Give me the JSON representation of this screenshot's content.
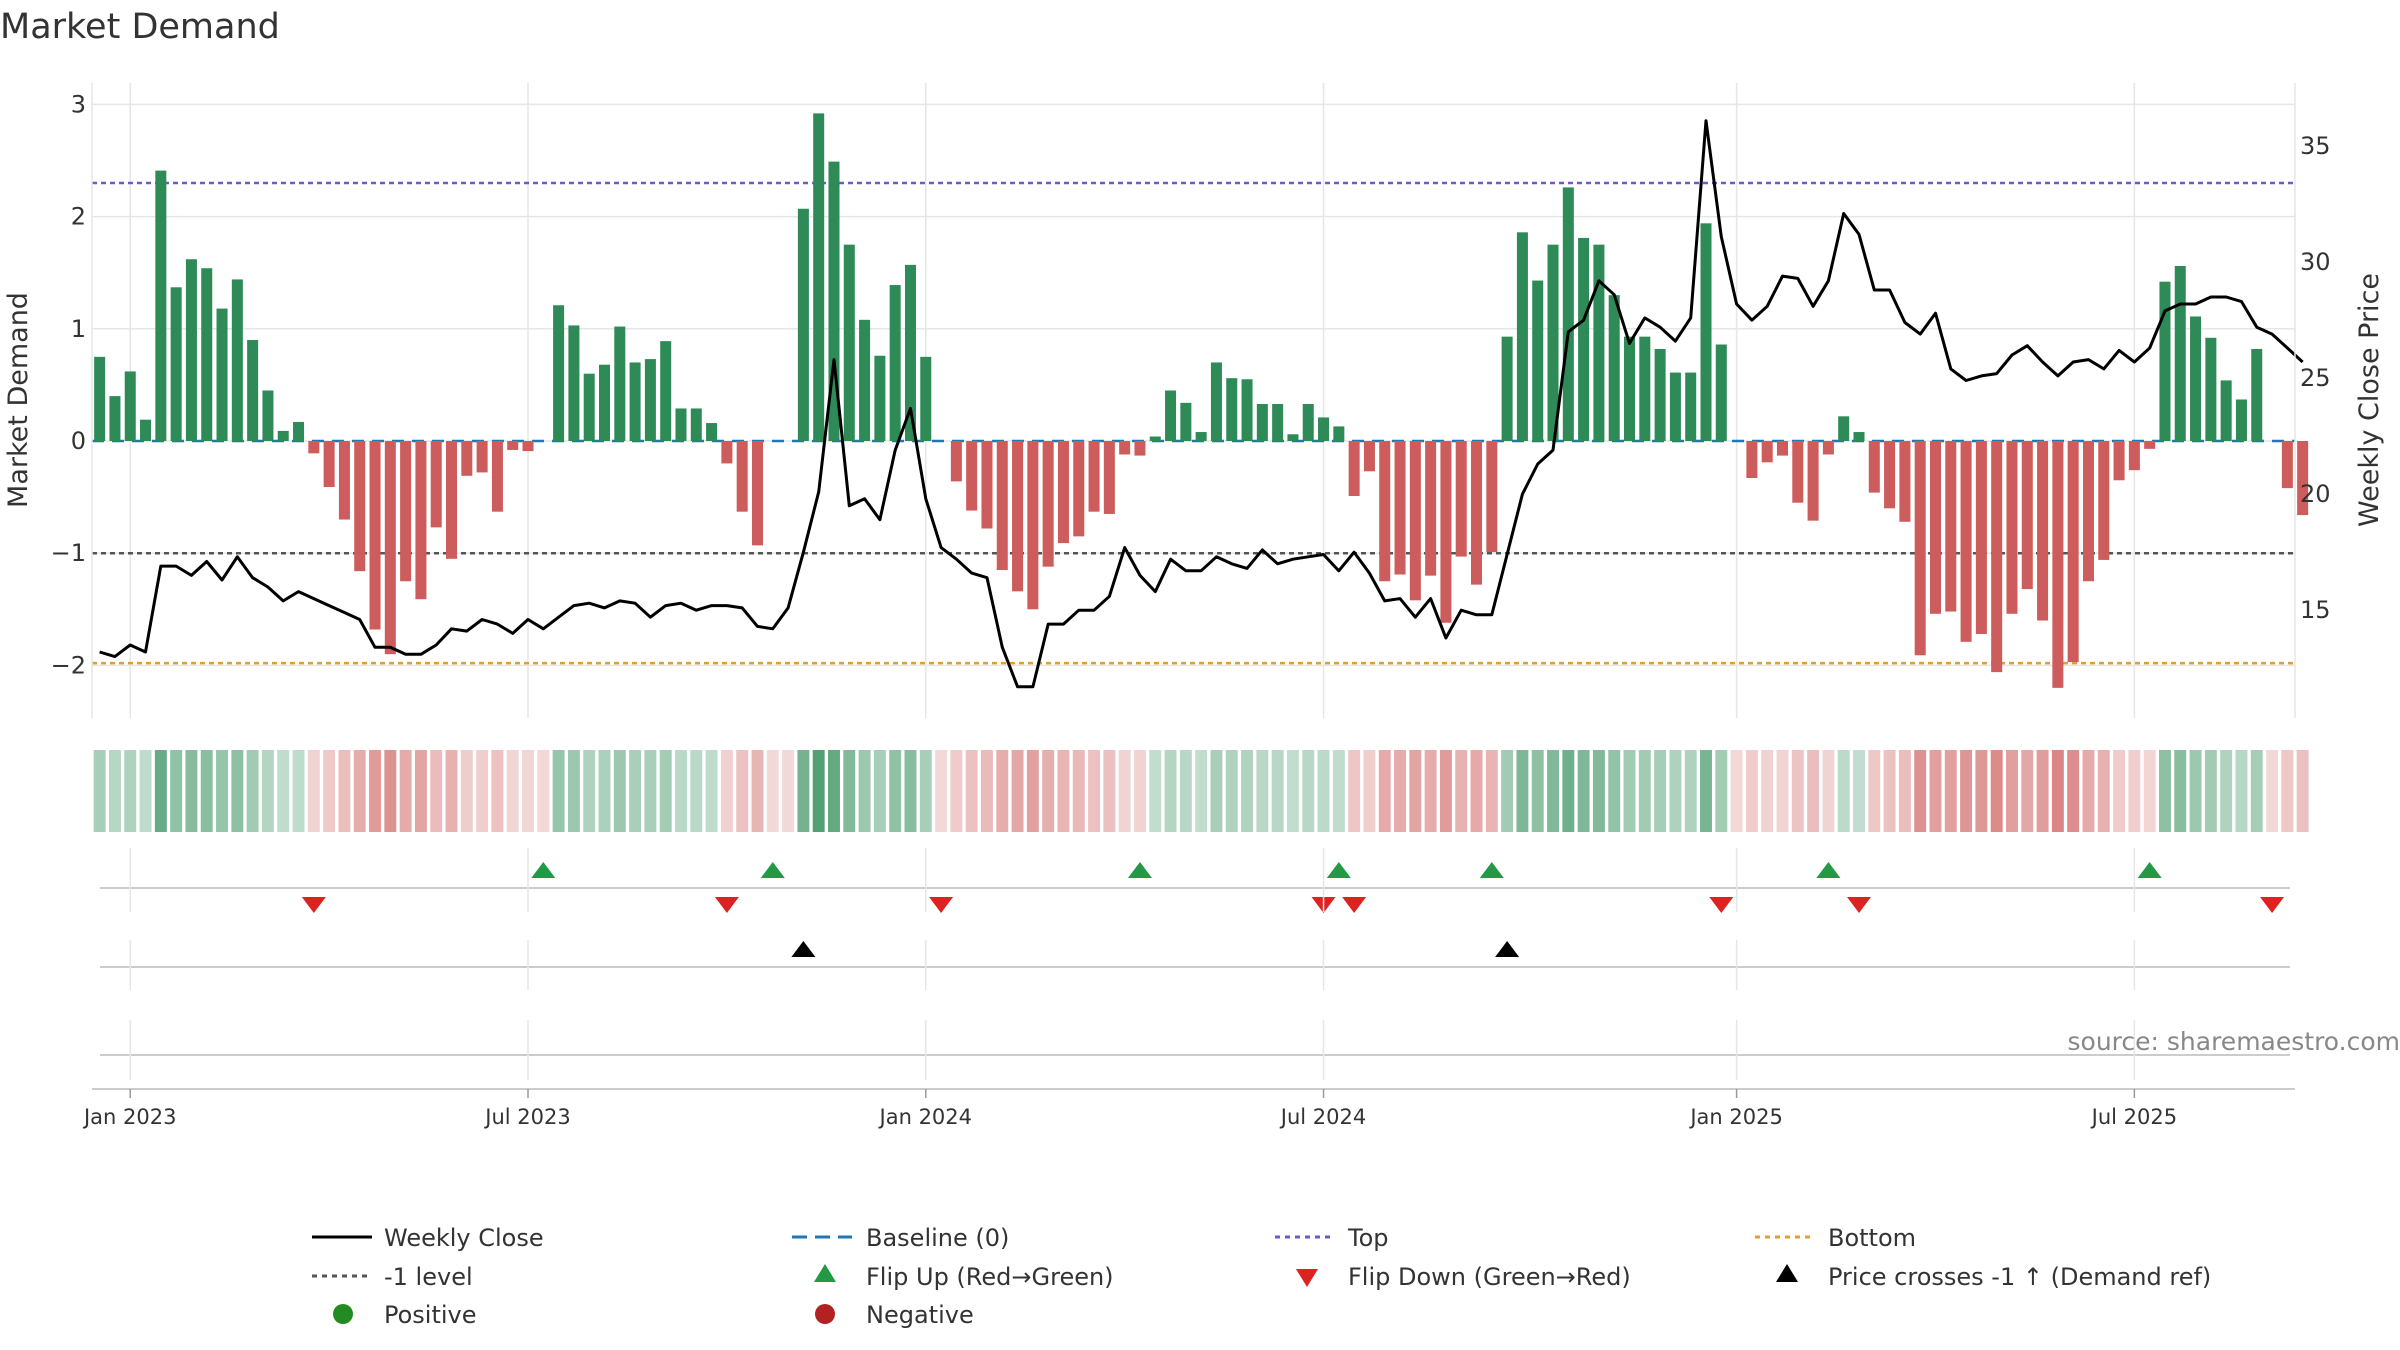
{
  "chart_data": {
    "type": "bar",
    "title": "Market Demand",
    "source": "source: sharemaestro.com",
    "ylabel": "Market Demand",
    "y2label": "Weekly Close Price",
    "ylim": [
      -2.5,
      3.2
    ],
    "y2lim": [
      10.0,
      37.0
    ],
    "yticks": [
      {
        "v": 3,
        "label": "3"
      },
      {
        "v": 2,
        "label": "2"
      },
      {
        "v": 1,
        "label": "1"
      },
      {
        "v": 0,
        "label": "0"
      },
      {
        "v": -1,
        "label": "−1"
      },
      {
        "v": -2,
        "label": "−2"
      }
    ],
    "y2ticks": [
      {
        "v": 35,
        "label": "35"
      },
      {
        "v": 30,
        "label": "30"
      },
      {
        "v": 25,
        "label": "25"
      },
      {
        "v": 20,
        "label": "20"
      },
      {
        "v": 15,
        "label": "15"
      }
    ],
    "xticks": [
      {
        "week": 2,
        "label": "Jan 2023"
      },
      {
        "week": 28,
        "label": "Jul 2023"
      },
      {
        "week": 54,
        "label": "Jan 2024"
      },
      {
        "week": 80,
        "label": "Jul 2024"
      },
      {
        "week": 107,
        "label": "Jan 2025"
      },
      {
        "week": 133,
        "label": "Jul 2025"
      }
    ],
    "week_count": 144,
    "levels": {
      "top": 2.3,
      "bottom": -1.98,
      "minus_one": -1.0,
      "baseline": 0
    },
    "demand": [
      0.75,
      0.4,
      0.62,
      0.19,
      2.41,
      1.37,
      1.62,
      1.54,
      1.18,
      1.44,
      0.9,
      0.45,
      0.09,
      0.17,
      -0.11,
      -0.41,
      -0.7,
      -1.16,
      -1.68,
      -1.9,
      -1.25,
      -1.41,
      -0.77,
      -1.05,
      -0.31,
      -0.28,
      -0.63,
      -0.08,
      -0.09,
      0.0,
      1.21,
      1.03,
      0.6,
      0.68,
      1.02,
      0.7,
      0.73,
      0.89,
      0.29,
      0.29,
      0.16,
      -0.2,
      -0.63,
      -0.93,
      0.0,
      0.0,
      2.07,
      2.92,
      2.49,
      1.75,
      1.08,
      0.76,
      1.39,
      1.57,
      0.75,
      0.0,
      -0.36,
      -0.62,
      -0.78,
      -1.15,
      -1.34,
      -1.5,
      -1.12,
      -0.91,
      -0.85,
      -0.63,
      -0.65,
      -0.12,
      -0.13,
      0.04,
      0.45,
      0.34,
      0.08,
      0.7,
      0.56,
      0.55,
      0.33,
      0.33,
      0.06,
      0.33,
      0.21,
      0.13,
      -0.49,
      -0.27,
      -1.25,
      -1.19,
      -1.42,
      -1.2,
      -1.62,
      -1.03,
      -1.28,
      -0.99,
      0.93,
      1.86,
      1.43,
      1.75,
      2.26,
      1.81,
      1.75,
      1.3,
      0.93,
      0.93,
      0.82,
      0.61,
      0.61,
      1.94,
      0.86,
      0.0,
      -0.33,
      -0.19,
      -0.13,
      -0.55,
      -0.71,
      -0.12,
      0.22,
      0.08,
      -0.46,
      -0.6,
      -0.72,
      -1.91,
      -1.54,
      -1.52,
      -1.79,
      -1.72,
      -2.06,
      -1.54,
      -1.32,
      -1.6,
      -2.2,
      -1.97,
      -1.25,
      -1.06,
      -0.35,
      -0.26,
      -0.07,
      1.42,
      1.56,
      1.11,
      0.92,
      0.54,
      0.37,
      0.82,
      0.0,
      -0.42,
      -0.66
    ],
    "close": [
      13.2,
      13.0,
      13.5,
      13.2,
      16.9,
      16.9,
      16.5,
      17.1,
      16.3,
      17.3,
      16.4,
      16.0,
      15.4,
      15.8,
      15.5,
      15.2,
      14.9,
      14.6,
      13.4,
      13.4,
      13.1,
      13.1,
      13.5,
      14.2,
      14.1,
      14.6,
      14.4,
      14.0,
      14.6,
      14.2,
      14.7,
      15.2,
      15.3,
      15.1,
      15.4,
      15.3,
      14.7,
      15.2,
      15.3,
      15.0,
      15.2,
      15.2,
      15.1,
      14.3,
      14.2,
      15.1,
      17.5,
      20.1,
      25.8,
      19.5,
      19.8,
      18.9,
      21.9,
      23.7,
      19.8,
      17.7,
      17.2,
      16.6,
      16.4,
      13.4,
      11.7,
      11.7,
      14.4,
      14.4,
      15.0,
      15.0,
      15.6,
      17.7,
      16.5,
      15.8,
      17.2,
      16.7,
      16.7,
      17.3,
      17.0,
      16.8,
      17.6,
      17.0,
      17.2,
      17.3,
      17.4,
      16.7,
      17.5,
      16.6,
      15.4,
      15.5,
      14.7,
      15.5,
      13.8,
      15.0,
      14.8,
      14.8,
      17.4,
      20.0,
      21.3,
      21.9,
      27.0,
      27.5,
      29.2,
      28.6,
      26.5,
      27.6,
      27.2,
      26.6,
      27.6,
      36.1,
      31.1,
      28.2,
      27.5,
      28.1,
      29.4,
      29.3,
      28.1,
      29.2,
      32.1,
      31.2,
      28.8,
      28.8,
      27.4,
      26.9,
      27.8,
      25.4,
      24.9,
      25.1,
      25.2,
      26.0,
      26.4,
      25.7,
      25.1,
      25.7,
      25.8,
      25.4,
      26.2,
      25.7,
      26.3,
      27.9,
      28.2,
      28.2,
      28.5,
      28.5,
      28.3,
      27.2,
      26.9,
      26.3,
      25.7
    ],
    "heat_strip": "weekly demand shown as green (positive) / red (negative) shading, intensity by magnitude",
    "markers": {
      "flip_up_weeks": [
        29,
        44,
        68,
        81,
        91,
        113,
        134
      ],
      "flip_down_weeks": [
        14,
        41,
        55,
        80,
        82,
        106,
        115,
        142
      ],
      "price_cross_weeks": [
        46,
        92
      ]
    },
    "legend": {
      "placement": "bottom",
      "items": [
        {
          "key": "close",
          "label": "Weekly Close"
        },
        {
          "key": "baseline",
          "label": "Baseline (0)"
        },
        {
          "key": "top",
          "label": "Top"
        },
        {
          "key": "bottom",
          "label": "Bottom"
        },
        {
          "key": "minus1",
          "label": "-1 level"
        },
        {
          "key": "flipup",
          "label": "Flip Up (Red→Green)"
        },
        {
          "key": "flipdown",
          "label": "Flip Down (Green→Red)"
        },
        {
          "key": "cross",
          "label": "Price crosses -1 ↑ (Demand ref)"
        },
        {
          "key": "positive",
          "label": "Positive"
        },
        {
          "key": "negative",
          "label": "Negative"
        }
      ]
    },
    "colors": {
      "positive": "#2e8b57",
      "negative": "#cd5c5c",
      "close": "#000000",
      "baseline": "#1f77b4",
      "top": "#6a5acd",
      "bottom": "#e69d2a",
      "minus1": "#555555",
      "flip_up": "#229944",
      "flip_down": "#dd2222",
      "cross": "#000000",
      "legend_positive": "#228b22",
      "legend_negative": "#b22222",
      "grid": "#e6e6e6",
      "axis": "#cccccc",
      "text": "#333333",
      "source": "#888888"
    }
  }
}
